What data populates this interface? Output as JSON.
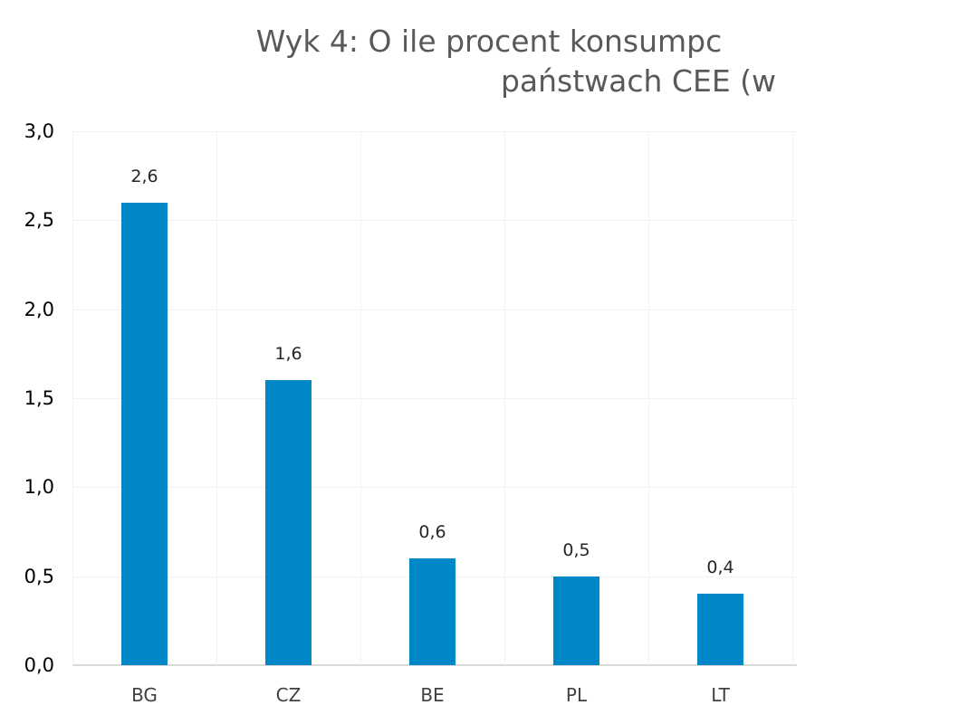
{
  "chart_data": {
    "type": "bar",
    "title": "Wyk 4: O ile procent konsumpc... państwach CEE (w...",
    "title_lines": [
      "Wyk 4: O ile procent konsumpc",
      "państwach CEE (w"
    ],
    "categories": [
      "BG",
      "CZ",
      "BE",
      "PL",
      "LT"
    ],
    "values": [
      2.6,
      1.6,
      0.6,
      0.5,
      0.4
    ],
    "value_labels": [
      "2,6",
      "1,6",
      "0,6",
      "0,5",
      "0,4"
    ],
    "yticks": [
      "0,0",
      "0,5",
      "1,0",
      "1,5",
      "2,0",
      "2,5",
      "3,0"
    ],
    "ylim": [
      0,
      3.0
    ],
    "xlabel": "",
    "ylabel": "",
    "grid": true,
    "legend": null,
    "bar_color": "#0087c8"
  }
}
